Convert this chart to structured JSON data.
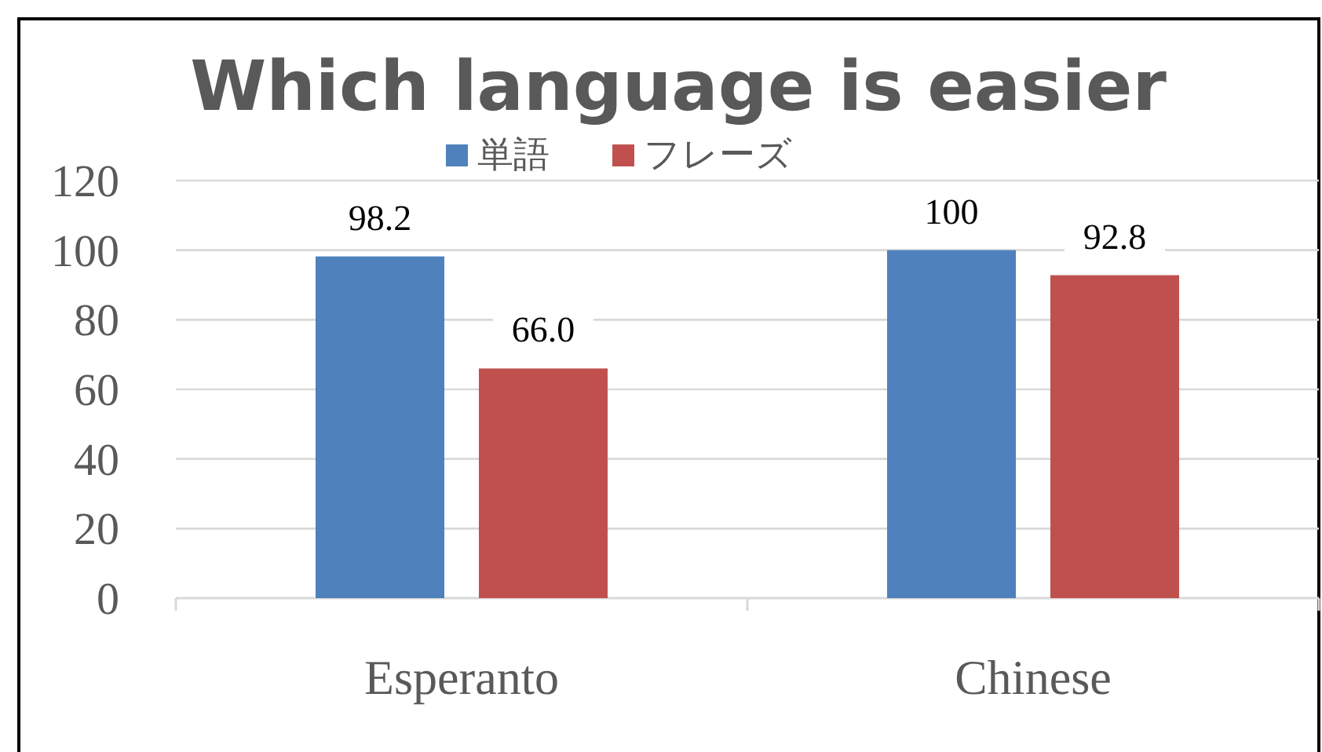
{
  "chart_data": {
    "type": "bar",
    "title": "Which language is easier",
    "categories": [
      "Esperanto",
      "Chinese"
    ],
    "series": [
      {
        "name": "単語",
        "color": "#4f81bd",
        "values": [
          98.2,
          100
        ],
        "value_labels": [
          "98.2",
          "100"
        ]
      },
      {
        "name": "フレーズ",
        "color": "#c0504d",
        "values": [
          66.0,
          92.8
        ],
        "value_labels": [
          "66.0",
          "92.8"
        ]
      }
    ],
    "ylim": [
      0,
      120
    ],
    "yticks": [
      0,
      20,
      40,
      60,
      80,
      100,
      120
    ],
    "grid": "y",
    "legend": "top"
  }
}
